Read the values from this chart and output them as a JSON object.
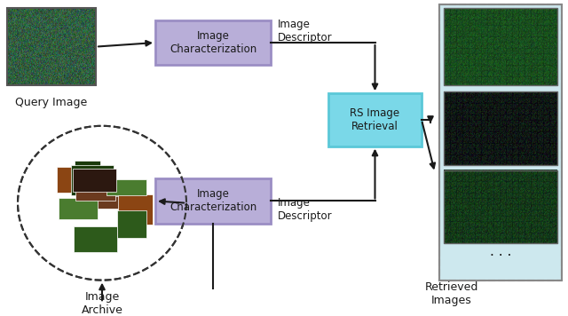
{
  "bg_color": "#f0f0f0",
  "fig_bg": "#ffffff",
  "box_purple": "#9b8ec4",
  "box_blue": "#5bc8d8",
  "box_purple_face": "#b8aed8",
  "box_blue_face": "#7ad8e8",
  "retrieved_bg": "#cde8ee",
  "arrow_color": "#1a1a1a",
  "text_color": "#1a1a1a",
  "query_box_color": "#555555",
  "archive_circle_color": "#333333",
  "title": "",
  "labels": {
    "query": "Query Image",
    "archive": "Image\nArchive",
    "img_char_top": "Image\nCharacterization",
    "img_char_bot": "Image\nCharacterization",
    "rs_retrieval": "RS Image\nRetrieval",
    "descriptor_top": "Image\nDescriptor",
    "descriptor_bot": "Image\nDescriptor",
    "retrieved": "Retrieved\nImages"
  }
}
